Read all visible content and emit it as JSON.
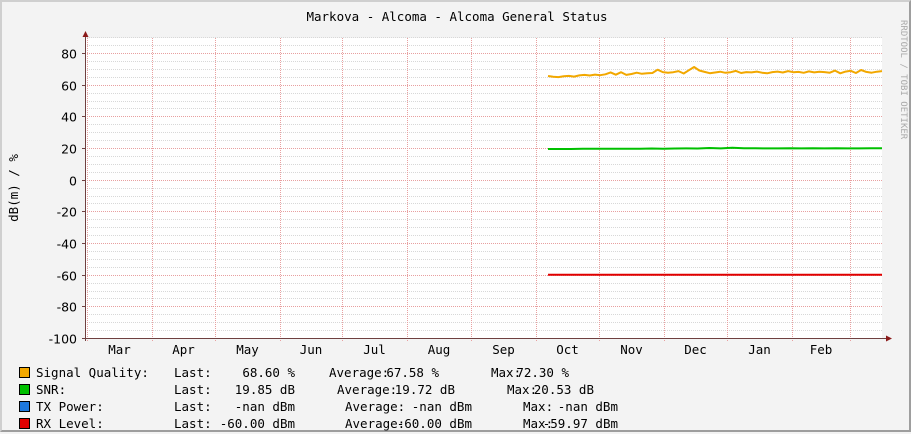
{
  "title": "Markova - Alcoma - Alcoma General Status",
  "watermark": "RRDTOOL / TOBI OETIKER",
  "colors": {
    "background": "#f3f3f3",
    "canvas": "#ffffff",
    "grid_major": "#e8a0a0",
    "grid_minor": "#d8d8d8",
    "axis": "#6f4040",
    "arrow": "#8b1a1a"
  },
  "chart_data": {
    "type": "line",
    "title": "Markova - Alcoma - Alcoma General Status",
    "xlabel": "",
    "ylabel": "dB(m) / %",
    "ylim": [
      -100,
      90
    ],
    "yticks": [
      80,
      60,
      40,
      20,
      0,
      -20,
      -40,
      -60,
      -80,
      -100
    ],
    "yticks_labels": [
      "80",
      "60",
      "40",
      "20",
      "0",
      "-20",
      "-40",
      "-60",
      "-80",
      "-100"
    ],
    "categories": [
      "Mar",
      "Apr",
      "May",
      "Jun",
      "Jul",
      "Aug",
      "Sep",
      "Oct",
      "Nov",
      "Dec",
      "Jan",
      "Feb"
    ],
    "grid": true,
    "legend_position": "bottom",
    "x_start_fraction_of_data": 0.585,
    "series": [
      {
        "name": "Signal Quality",
        "color": "#f2a800",
        "unit": "%",
        "values_monthly": [
          null,
          null,
          null,
          null,
          null,
          null,
          null,
          65.2,
          66.8,
          68.2,
          67.5,
          68.0
        ],
        "trace": [
          65.5,
          65.0,
          64.8,
          65.3,
          65.6,
          65.1,
          65.9,
          66.2,
          65.8,
          66.4,
          66.0,
          66.6,
          67.8,
          66.3,
          67.9,
          66.2,
          66.8,
          67.6,
          66.9,
          67.2,
          67.4,
          69.5,
          68.0,
          67.6,
          67.9,
          68.6,
          67.1,
          69.2,
          71.2,
          69.0,
          68.1,
          67.3,
          67.7,
          68.2,
          67.5,
          67.9,
          68.7,
          67.4,
          68.0,
          67.8,
          68.3,
          67.6,
          67.2,
          68.0,
          68.3,
          67.7,
          68.6,
          67.9,
          68.1,
          67.5,
          68.4,
          67.8,
          68.2,
          68.0,
          67.6,
          68.9,
          67.2,
          68.3,
          68.8,
          67.4,
          69.3,
          68.1,
          67.6,
          68.2,
          68.6
        ],
        "last": "68.60 %",
        "average": "67.58 %",
        "max": "72.30 %"
      },
      {
        "name": "SNR",
        "color": "#00c000",
        "unit": "dB",
        "values_monthly": [
          null,
          null,
          null,
          null,
          null,
          null,
          null,
          19.5,
          19.7,
          19.9,
          19.8,
          19.8
        ],
        "trace": [
          19.4,
          19.4,
          19.4,
          19.5,
          19.5,
          19.5,
          19.6,
          19.6,
          19.6,
          19.7,
          19.6,
          19.7,
          19.8,
          19.7,
          20.0,
          19.8,
          20.2,
          19.9,
          19.9,
          19.8,
          19.8,
          19.9,
          19.8,
          19.9,
          19.8,
          19.9,
          19.8,
          19.8,
          19.9,
          19.85
        ],
        "last": "19.85 dB",
        "average": "19.72 dB",
        "max": "20.53 dB"
      },
      {
        "name": "TX Power",
        "color": "#1e78dc",
        "unit": "dBm",
        "values_monthly": [
          null,
          null,
          null,
          null,
          null,
          null,
          null,
          null,
          null,
          null,
          null,
          null
        ],
        "trace": [],
        "last": "-nan dBm",
        "average": "-nan dBm",
        "max": "-nan dBm"
      },
      {
        "name": "RX Level",
        "color": "#e00000",
        "unit": "dBm",
        "values_monthly": [
          null,
          null,
          null,
          null,
          null,
          null,
          null,
          -60.0,
          -60.0,
          -60.0,
          -60.0,
          -60.0
        ],
        "trace": [
          -60.0,
          -60.0
        ],
        "last": "-60.00 dBm",
        "average": "-60.00 dBm",
        "max": "-59.97 dBm"
      }
    ]
  },
  "legend": {
    "rows": [
      {
        "label": "Signal Quality:",
        "last_label": "Last:",
        "last": "68.60 %",
        "avg_label": "Average:",
        "average": "67.58 %",
        "max_label": "Max:",
        "max": "72.30 %",
        "color": "#f2a800"
      },
      {
        "label": "SNR:",
        "last_label": "Last:",
        "last": "19.85 dB",
        "avg_label": "Average:",
        "average": "19.72 dB",
        "max_label": "Max:",
        "max": "20.53 dB",
        "color": "#00c000"
      },
      {
        "label": "TX Power:",
        "last_label": "Last:",
        "last": "-nan dBm",
        "avg_label": "Average:",
        "average": "-nan dBm",
        "max_label": "Max:",
        "max": "-nan dBm",
        "color": "#1e78dc"
      },
      {
        "label": "RX Level:",
        "last_label": "Last:",
        "last": "-60.00 dBm",
        "avg_label": "Average:",
        "average": "-60.00 dBm",
        "max_label": "Max:",
        "max": "-59.97 dBm",
        "color": "#e00000"
      }
    ]
  }
}
